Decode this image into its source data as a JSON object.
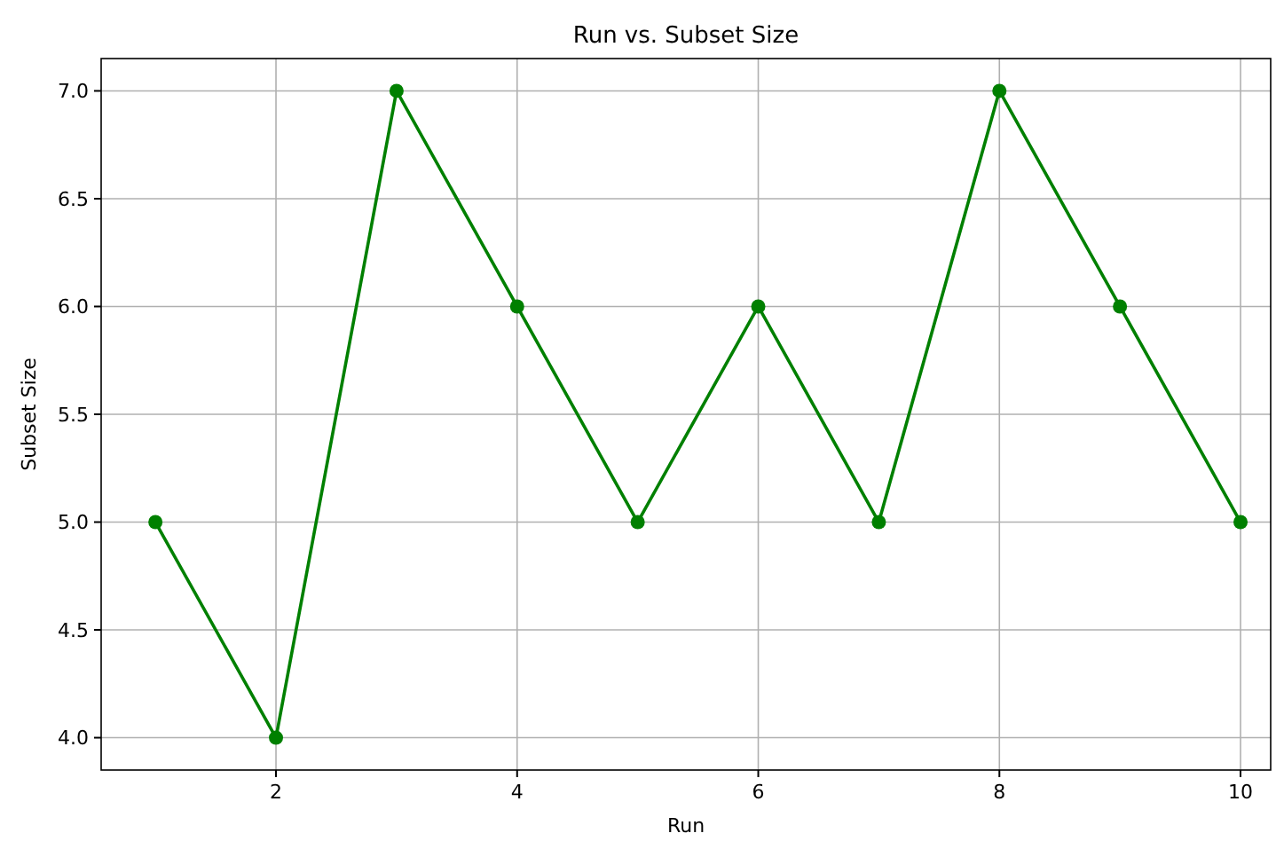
{
  "chart_data": {
    "type": "line",
    "title": "Run vs. Subset Size",
    "xlabel": "Run",
    "ylabel": "Subset Size",
    "x": [
      1,
      2,
      3,
      4,
      5,
      6,
      7,
      8,
      9,
      10
    ],
    "series": [
      {
        "color": "#008000",
        "values": [
          5,
          4,
          7,
          6,
          5,
          6,
          5,
          7,
          6,
          5
        ]
      }
    ],
    "xlim": [
      0.55,
      10.25
    ],
    "xticks": [
      2,
      4,
      6,
      8,
      10
    ],
    "ylim": [
      3.85,
      7.15
    ],
    "yticks": [
      {
        "value": 4,
        "label": "4.0"
      },
      {
        "value": 4.5,
        "label": "4.5"
      },
      {
        "value": 5,
        "label": "5.0"
      },
      {
        "value": 5.5,
        "label": "5.5"
      },
      {
        "value": 6,
        "label": "6.0"
      },
      {
        "value": 6.5,
        "label": "6.5"
      },
      {
        "value": 7,
        "label": "7.0"
      }
    ],
    "grid": true,
    "marker": "circle",
    "line_style": "solid"
  }
}
